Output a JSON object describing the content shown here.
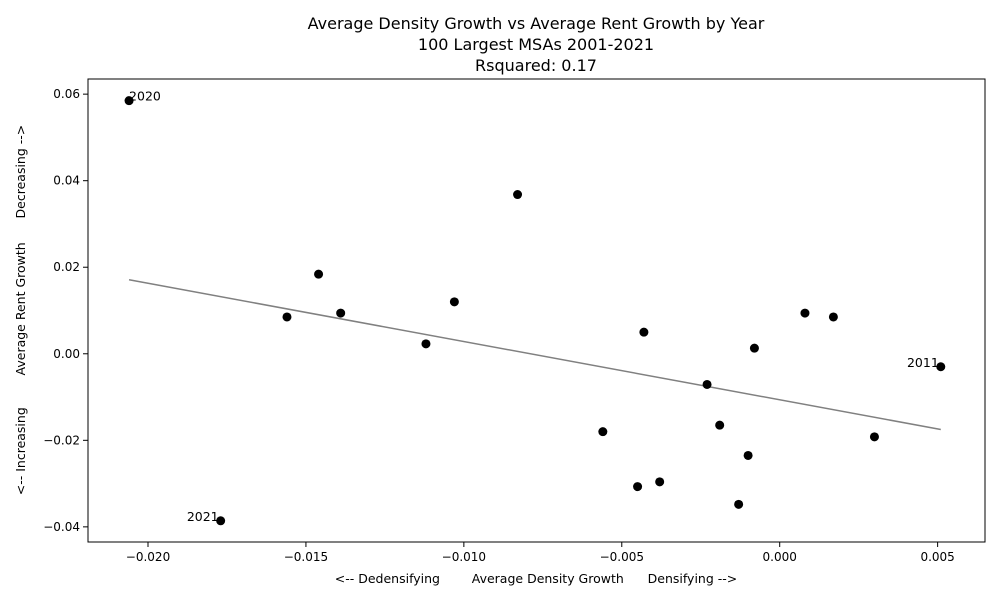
{
  "chart_data": {
    "type": "scatter",
    "title": [
      "Average Density Growth vs Average Rent Growth by Year",
      "100 Largest MSAs 2001-2021",
      "Rsquared: 0.17"
    ],
    "xlabel": "<-- Dedensifying        Average Density Growth      Densifying -->",
    "ylabel": "<-- Increasing        Average Rent Growth      Decreasing -->",
    "xlim": [
      -0.0219,
      0.0065
    ],
    "ylim": [
      -0.0435,
      0.0635
    ],
    "xticks": [
      -0.02,
      -0.015,
      -0.01,
      -0.005,
      0.0,
      0.005
    ],
    "xtick_labels": [
      "−0.020",
      "−0.015",
      "−0.010",
      "−0.005",
      "0.000",
      "0.005"
    ],
    "yticks": [
      -0.04,
      -0.02,
      0.0,
      0.02,
      0.04,
      0.06
    ],
    "ytick_labels": [
      "−0.04",
      "−0.02",
      "0.00",
      "0.02",
      "0.04",
      "0.06"
    ],
    "grid": false,
    "point_color": "#000000",
    "trend_color": "#808080",
    "points": [
      {
        "x": -0.0206,
        "y": 0.0585
      },
      {
        "x": -0.0083,
        "y": 0.0368
      },
      {
        "x": -0.0146,
        "y": 0.0184
      },
      {
        "x": -0.0103,
        "y": 0.012
      },
      {
        "x": -0.0156,
        "y": 0.0085
      },
      {
        "x": -0.0139,
        "y": 0.0094
      },
      {
        "x": -0.0112,
        "y": 0.0023
      },
      {
        "x": -0.0043,
        "y": 0.005
      },
      {
        "x": 0.0008,
        "y": 0.0094
      },
      {
        "x": 0.0017,
        "y": 0.0085
      },
      {
        "x": -0.0008,
        "y": 0.0013
      },
      {
        "x": 0.0051,
        "y": -0.003
      },
      {
        "x": -0.0023,
        "y": -0.0071
      },
      {
        "x": -0.0056,
        "y": -0.018
      },
      {
        "x": -0.0019,
        "y": -0.0165
      },
      {
        "x": 0.003,
        "y": -0.0192
      },
      {
        "x": -0.001,
        "y": -0.0235
      },
      {
        "x": -0.0038,
        "y": -0.0296
      },
      {
        "x": -0.0045,
        "y": -0.0307
      },
      {
        "x": -0.0013,
        "y": -0.0348
      },
      {
        "x": -0.0177,
        "y": -0.0386
      }
    ],
    "annotations": [
      {
        "text": "2020",
        "x": -0.0206,
        "y": 0.0585
      },
      {
        "text": "2011",
        "x": 0.0051,
        "y": -0.003
      },
      {
        "text": "2021",
        "x": -0.0177,
        "y": -0.0386
      }
    ],
    "trendline": {
      "x": [
        -0.0206,
        0.0051
      ],
      "y": [
        0.0171,
        -0.0175
      ]
    }
  }
}
